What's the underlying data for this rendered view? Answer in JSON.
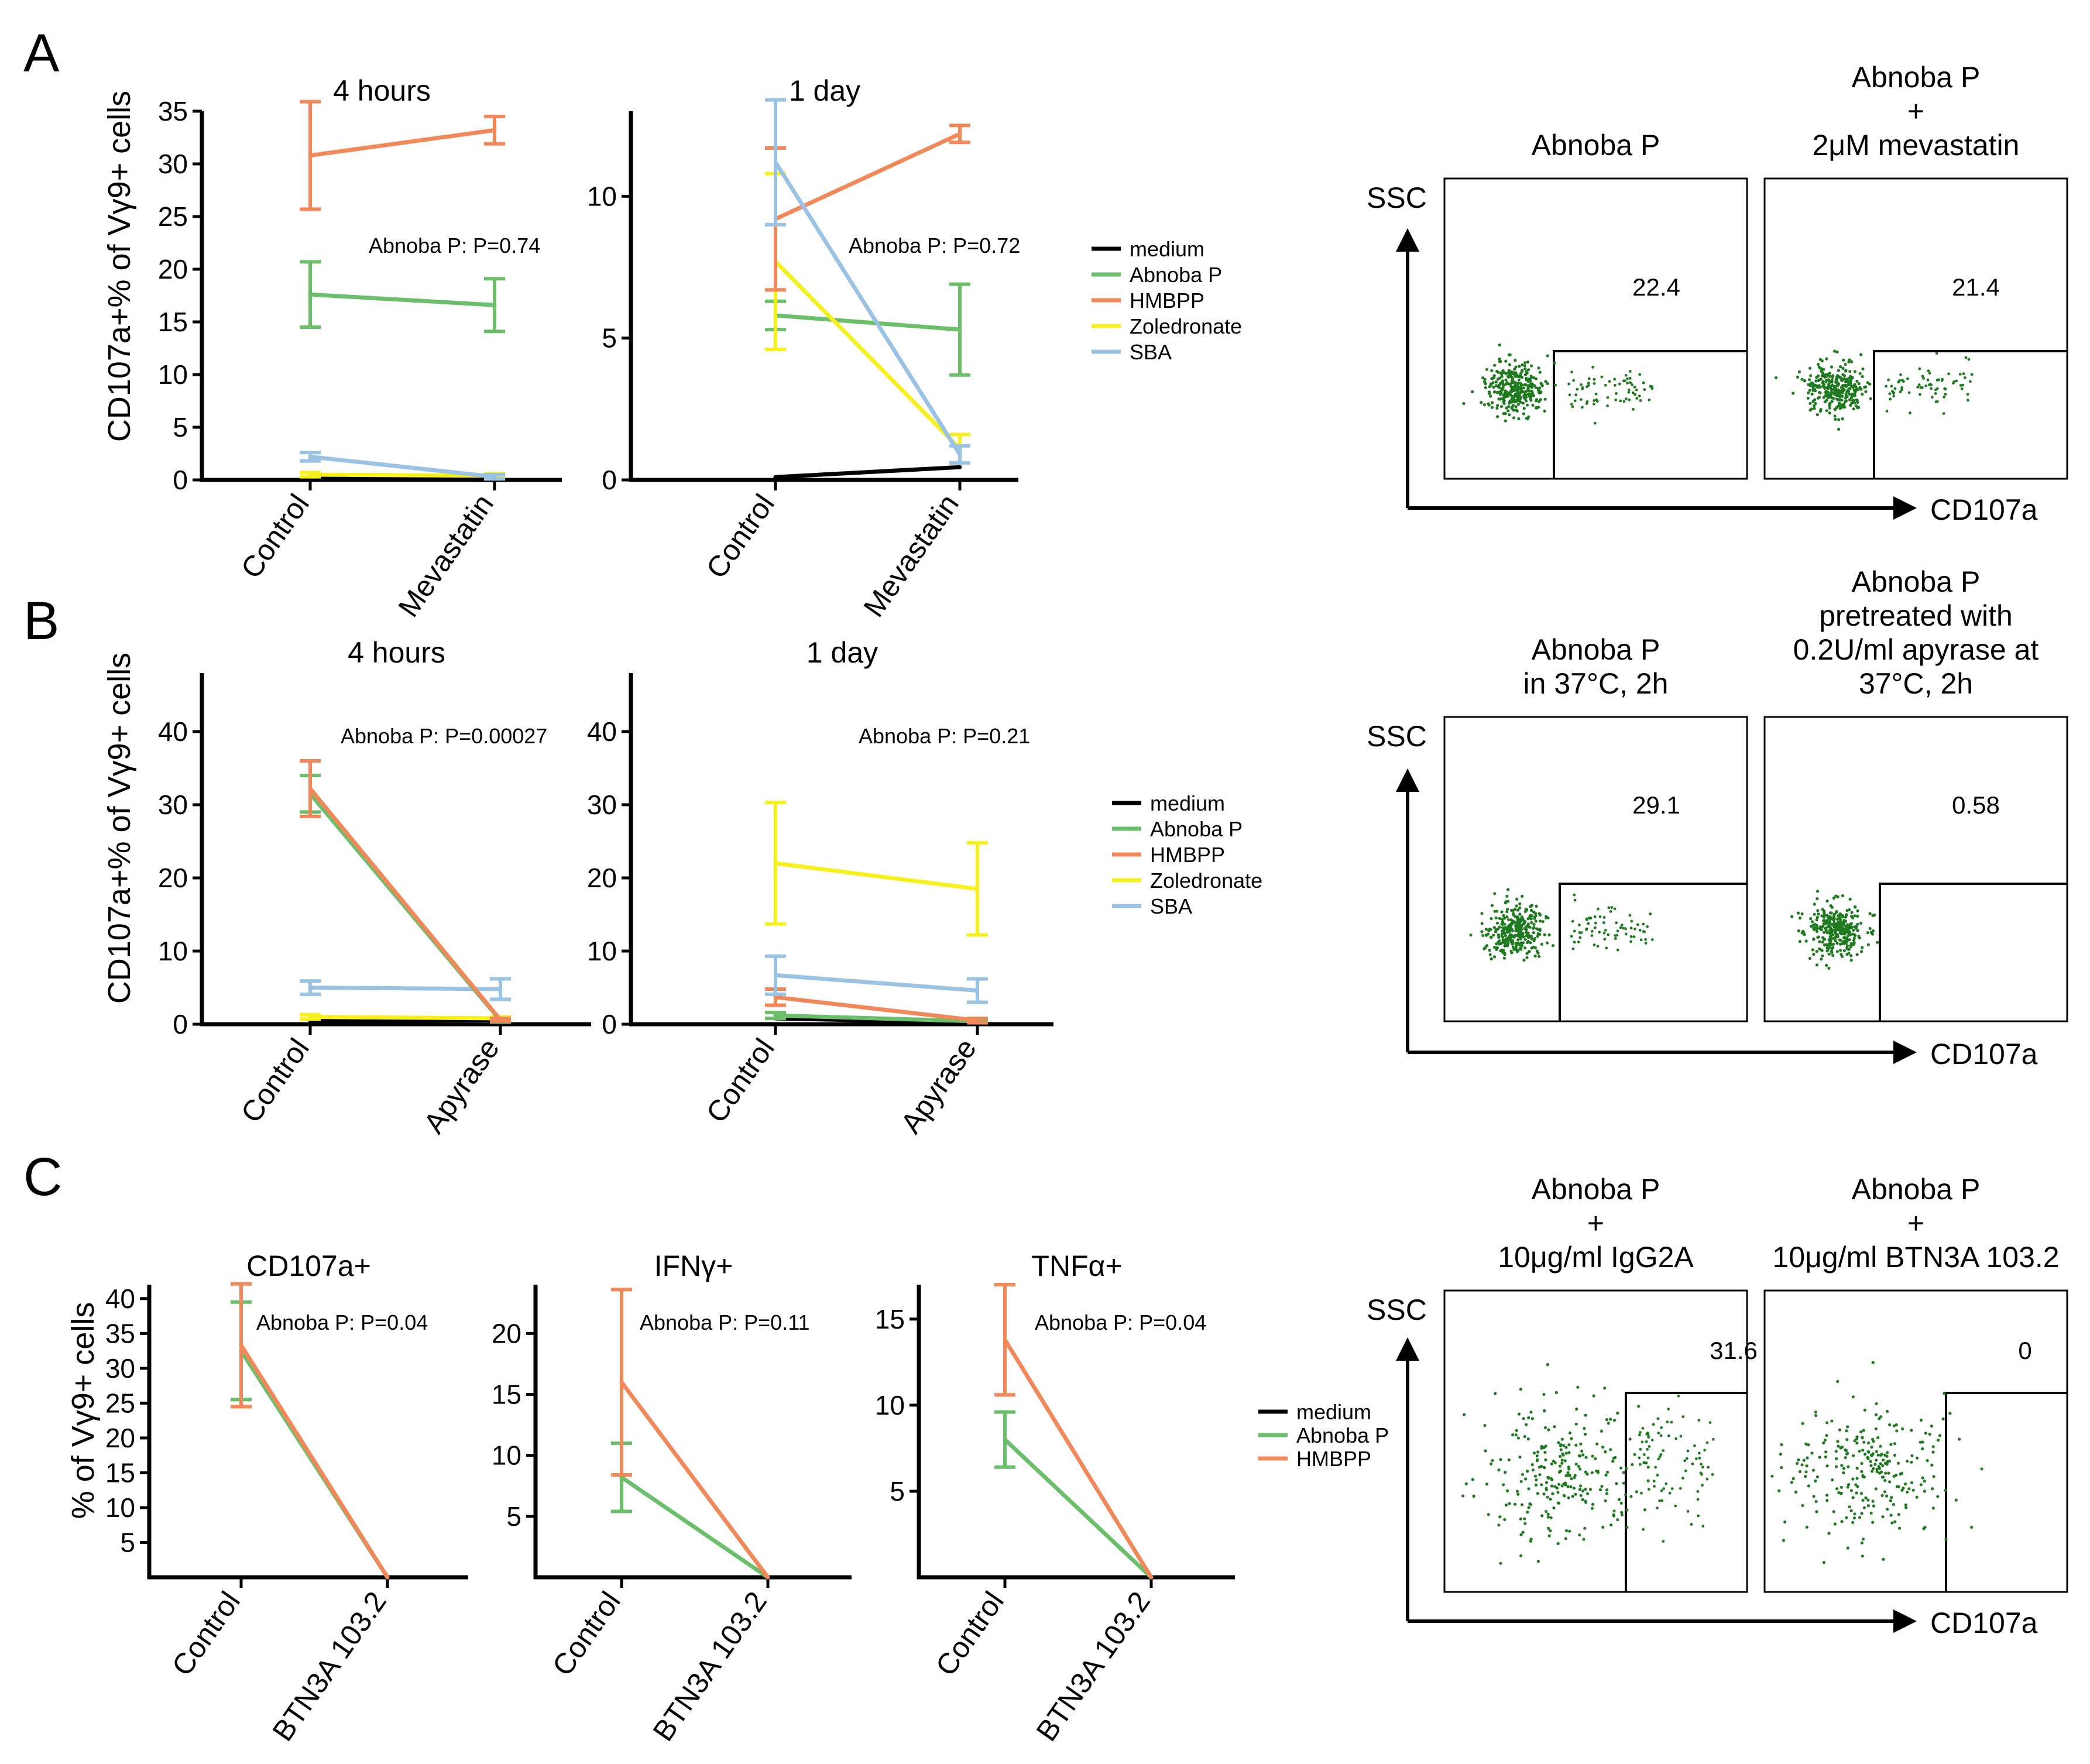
{
  "panel_letters": [
    "A",
    "B",
    "C"
  ],
  "colors": {
    "medium": "#000000",
    "Abnoba P": "#6bbf6b",
    "HMBPP": "#f0885a",
    "Zoledronate": "#f5f01e",
    "SBA": "#9ac2e2",
    "dots": "#1f7a1f"
  },
  "legends": {
    "A": [
      "medium",
      "Abnoba P",
      "HMBPP",
      "Zoledronate",
      "SBA"
    ],
    "B": [
      "medium",
      "Abnoba P",
      "HMBPP",
      "Zoledronate",
      "SBA"
    ],
    "C": [
      "medium",
      "Abnoba P",
      "HMBPP"
    ]
  },
  "y_labels": {
    "A": "CD107a+% of Vγ9+ cells",
    "B": "CD107a+% of Vγ9+ cells",
    "C": "% of Vγ9+ cells"
  },
  "chart_data": [
    {
      "id": "A-4h",
      "panel": "A",
      "type": "line",
      "title": "4 hours",
      "categories": [
        "Control",
        "Mevastatin"
      ],
      "ylim": [
        0,
        35
      ],
      "yticks": [
        0,
        5,
        10,
        15,
        20,
        25,
        30,
        35
      ],
      "annotation": "Abnoba P: P=0.74",
      "series": [
        {
          "name": "medium",
          "values": [
            0.2,
            0.1
          ],
          "err": [
            0,
            0
          ]
        },
        {
          "name": "Zoledronate",
          "values": [
            0.5,
            0.4
          ],
          "err": [
            0.2,
            0.2
          ]
        },
        {
          "name": "SBA",
          "values": [
            2.2,
            0.3
          ],
          "err": [
            0.4,
            0.2
          ]
        },
        {
          "name": "Abnoba P",
          "values": [
            17.6,
            16.6
          ],
          "err": [
            3.1,
            2.5
          ]
        },
        {
          "name": "HMBPP",
          "values": [
            30.8,
            33.2
          ],
          "err": [
            5.1,
            1.3
          ]
        }
      ]
    },
    {
      "id": "A-1d",
      "panel": "A",
      "type": "line",
      "title": "1 day",
      "categories": [
        "Control",
        "Mevastatin"
      ],
      "ylim": [
        0,
        13
      ],
      "yticks": [
        0,
        5,
        10
      ],
      "annotation": "Abnoba P: P=0.72",
      "series": [
        {
          "name": "medium",
          "values": [
            0.1,
            0.45
          ],
          "err": [
            0,
            0
          ]
        },
        {
          "name": "Abnoba P",
          "values": [
            5.8,
            5.3
          ],
          "err": [
            0.5,
            1.6
          ]
        },
        {
          "name": "Zoledronate",
          "values": [
            7.7,
            1.1
          ],
          "err": [
            3.1,
            0.5
          ]
        },
        {
          "name": "HMBPP",
          "values": [
            9.2,
            12.2
          ],
          "err": [
            2.5,
            0.3
          ]
        },
        {
          "name": "SBA",
          "values": [
            11.2,
            0.9
          ],
          "err": [
            2.2,
            0.3
          ]
        }
      ]
    },
    {
      "id": "B-4h",
      "panel": "B",
      "type": "line",
      "title": "4 hours",
      "categories": [
        "Control",
        "Apyrase"
      ],
      "ylim": [
        0,
        48
      ],
      "yticks": [
        0,
        10,
        20,
        30,
        40
      ],
      "annotation": "Abnoba P: P=0.00027",
      "series": [
        {
          "name": "medium",
          "values": [
            0.5,
            0.6
          ],
          "err": [
            0,
            0
          ]
        },
        {
          "name": "Zoledronate",
          "values": [
            1.0,
            0.8
          ],
          "err": [
            0.3,
            0.2
          ]
        },
        {
          "name": "SBA",
          "values": [
            5.0,
            4.8
          ],
          "err": [
            0.9,
            1.4
          ]
        },
        {
          "name": "Abnoba P",
          "values": [
            31.5,
            0.5
          ],
          "err": [
            2.5,
            0.2
          ]
        },
        {
          "name": "HMBPP",
          "values": [
            32.2,
            0.6
          ],
          "err": [
            3.8,
            0.2
          ]
        }
      ]
    },
    {
      "id": "B-1d",
      "panel": "B",
      "type": "line",
      "title": "1 day",
      "categories": [
        "Control",
        "Apyrase"
      ],
      "ylim": [
        0,
        48
      ],
      "yticks": [
        0,
        10,
        20,
        30,
        40
      ],
      "annotation": "Abnoba P: P=0.21",
      "series": [
        {
          "name": "medium",
          "values": [
            0.8,
            0.2
          ],
          "err": [
            0,
            0
          ]
        },
        {
          "name": "Abnoba P",
          "values": [
            1.2,
            0.4
          ],
          "err": [
            0.4,
            0.2
          ]
        },
        {
          "name": "HMBPP",
          "values": [
            3.7,
            0.5
          ],
          "err": [
            1.1,
            0.3
          ]
        },
        {
          "name": "SBA",
          "values": [
            6.7,
            4.6
          ],
          "err": [
            2.6,
            1.6
          ]
        },
        {
          "name": "Zoledronate",
          "values": [
            22.0,
            18.5
          ],
          "err": [
            8.3,
            6.3
          ]
        }
      ]
    },
    {
      "id": "C-CD107a",
      "panel": "C",
      "type": "line",
      "title": "CD107a+",
      "categories": [
        "Control",
        "BTN3A 103.2"
      ],
      "ylim": [
        0,
        42
      ],
      "yticks": [
        5,
        10,
        15,
        20,
        25,
        30,
        35,
        40
      ],
      "annotation": "Abnoba P: P=0.04",
      "series": [
        {
          "name": "medium",
          "values": [
            0,
            0
          ],
          "err": [
            0,
            0
          ]
        },
        {
          "name": "Abnoba P",
          "values": [
            32.5,
            0
          ],
          "err": [
            7.0,
            0
          ]
        },
        {
          "name": "HMBPP",
          "values": [
            33.3,
            0
          ],
          "err": [
            8.8,
            0
          ]
        }
      ]
    },
    {
      "id": "C-IFNg",
      "panel": "C",
      "type": "line",
      "title": "IFNγ+",
      "categories": [
        "Control",
        "BTN3A 103.2"
      ],
      "ylim": [
        0,
        24
      ],
      "yticks": [
        5,
        10,
        15,
        20
      ],
      "annotation": "Abnoba P: P=0.11",
      "series": [
        {
          "name": "medium",
          "values": [
            0,
            0
          ],
          "err": [
            0,
            0
          ]
        },
        {
          "name": "Abnoba P",
          "values": [
            8.2,
            0
          ],
          "err": [
            2.8,
            0
          ]
        },
        {
          "name": "HMBPP",
          "values": [
            16.0,
            0
          ],
          "err": [
            7.6,
            0
          ]
        }
      ]
    },
    {
      "id": "C-TNFa",
      "panel": "C",
      "type": "line",
      "title": "TNFα+",
      "categories": [
        "Control",
        "BTN3A 103.2"
      ],
      "ylim": [
        0,
        17
      ],
      "yticks": [
        5,
        10,
        15
      ],
      "annotation": "Abnoba P: P=0.04",
      "series": [
        {
          "name": "medium",
          "values": [
            0,
            0
          ],
          "err": [
            0,
            0
          ]
        },
        {
          "name": "Abnoba P",
          "values": [
            8.0,
            0
          ],
          "err": [
            1.6,
            0
          ]
        },
        {
          "name": "HMBPP",
          "values": [
            13.8,
            0
          ],
          "err": [
            3.2,
            0
          ]
        }
      ]
    }
  ],
  "flow": {
    "axis_y": "SSC",
    "axis_x": "CD107a",
    "rows": [
      {
        "panel": "A",
        "plots": [
          {
            "title_lines": [
              "Abnoba P"
            ],
            "value": "22.4"
          },
          {
            "title_lines": [
              "Abnoba P",
              "+",
              "2μM mevastatin"
            ],
            "value": "21.4"
          }
        ]
      },
      {
        "panel": "B",
        "plots": [
          {
            "title_lines": [
              "Abnoba P",
              "in 37°C, 2h"
            ],
            "value": "29.1"
          },
          {
            "title_lines": [
              "Abnoba P",
              "pretreated with",
              "0.2U/ml apyrase at",
              "37°C, 2h"
            ],
            "value": "0.58"
          }
        ]
      },
      {
        "panel": "C",
        "plots": [
          {
            "title_lines": [
              "Abnoba P",
              "+",
              "10μg/ml IgG2A"
            ],
            "value": "31.6"
          },
          {
            "title_lines": [
              "Abnoba P",
              "+",
              "10μg/ml BTN3A 103.2"
            ],
            "value": "0"
          }
        ]
      }
    ]
  }
}
